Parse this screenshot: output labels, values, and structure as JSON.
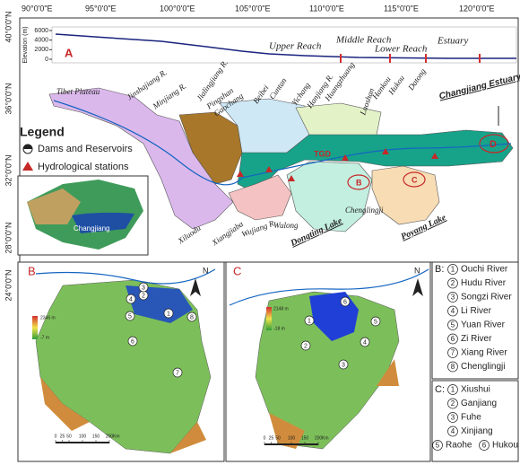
{
  "lon_labels": [
    "90°0'0\"E",
    "95°0'0\"E",
    "100°0'0\"E",
    "105°0'0\"E",
    "110°0'0\"E",
    "115°0'0\"E",
    "120°0'0\"E"
  ],
  "lat_labels": [
    "40°0'0\"N",
    "36°0'0\"N",
    "32°0'0\"N",
    "28°0'0\"N",
    "24°0'0\"N"
  ],
  "panel_a": {
    "label": "A",
    "elevation_label": "Elevation (m)",
    "elevation_ticks": [
      6000,
      4000,
      2000,
      0
    ],
    "reaches": [
      "Upper Reach",
      "Middle Reach",
      "Lower Reach",
      "Estuary"
    ],
    "estuary": "Changjiang Estuary",
    "places": [
      "Tibet Plateau",
      "Jinshajiang R.",
      "Minjiang R.",
      "Jialingjiang R.",
      "Pingshan",
      "Gaochang",
      "Beibei",
      "Cuntan",
      "Yichang",
      "Hanjiang R.",
      "Huangzhuang",
      "Luoshan",
      "Hankou",
      "Hukou",
      "Datong",
      "Xiluodu",
      "Xiangjiaba",
      "Wujiang R.",
      "Wulong",
      "Dongting Lake",
      "Chenglingji",
      "Poyang Lake"
    ],
    "tgd": "TGD",
    "d_marker": "D",
    "b_marker": "B",
    "c_marker": "C",
    "legend": {
      "title": "Legend",
      "items": [
        "Dams and Reservoirs",
        "Hydrological stations"
      ]
    },
    "inset_label": "Changjiang"
  },
  "panel_b": {
    "label": "B",
    "north": "N",
    "elev_max": "2346 m",
    "elev_min": "-7 m",
    "scale": [
      0,
      25,
      50,
      100,
      150,
      200
    ],
    "scale_unit": "Km"
  },
  "panel_c": {
    "label": "C",
    "north": "N",
    "elev_max": "2148 m",
    "elev_min": "-18 m",
    "scale": [
      0,
      25,
      50,
      100,
      150,
      200
    ],
    "scale_unit": "Km"
  },
  "river_list": {
    "b_title": "B:",
    "b_items": [
      {
        "num": 1,
        "name": "Ouchi River"
      },
      {
        "num": 2,
        "name": "Hudu River"
      },
      {
        "num": 3,
        "name": "Songzi River"
      },
      {
        "num": 4,
        "name": "Li River"
      },
      {
        "num": 5,
        "name": "Yuan River"
      },
      {
        "num": 6,
        "name": "Zi River"
      },
      {
        "num": 7,
        "name": "Xiang River"
      },
      {
        "num": 8,
        "name": "Chenglingji"
      }
    ],
    "c_title": "C:",
    "c_items": [
      {
        "num": 1,
        "name": "Xiushui"
      },
      {
        "num": 2,
        "name": "Ganjiang"
      },
      {
        "num": 3,
        "name": "Fuhe"
      },
      {
        "num": 4,
        "name": "Xinjiang"
      },
      {
        "num": 5,
        "name": "Raohe"
      },
      {
        "num": 6,
        "name": "Hukou"
      }
    ]
  }
}
